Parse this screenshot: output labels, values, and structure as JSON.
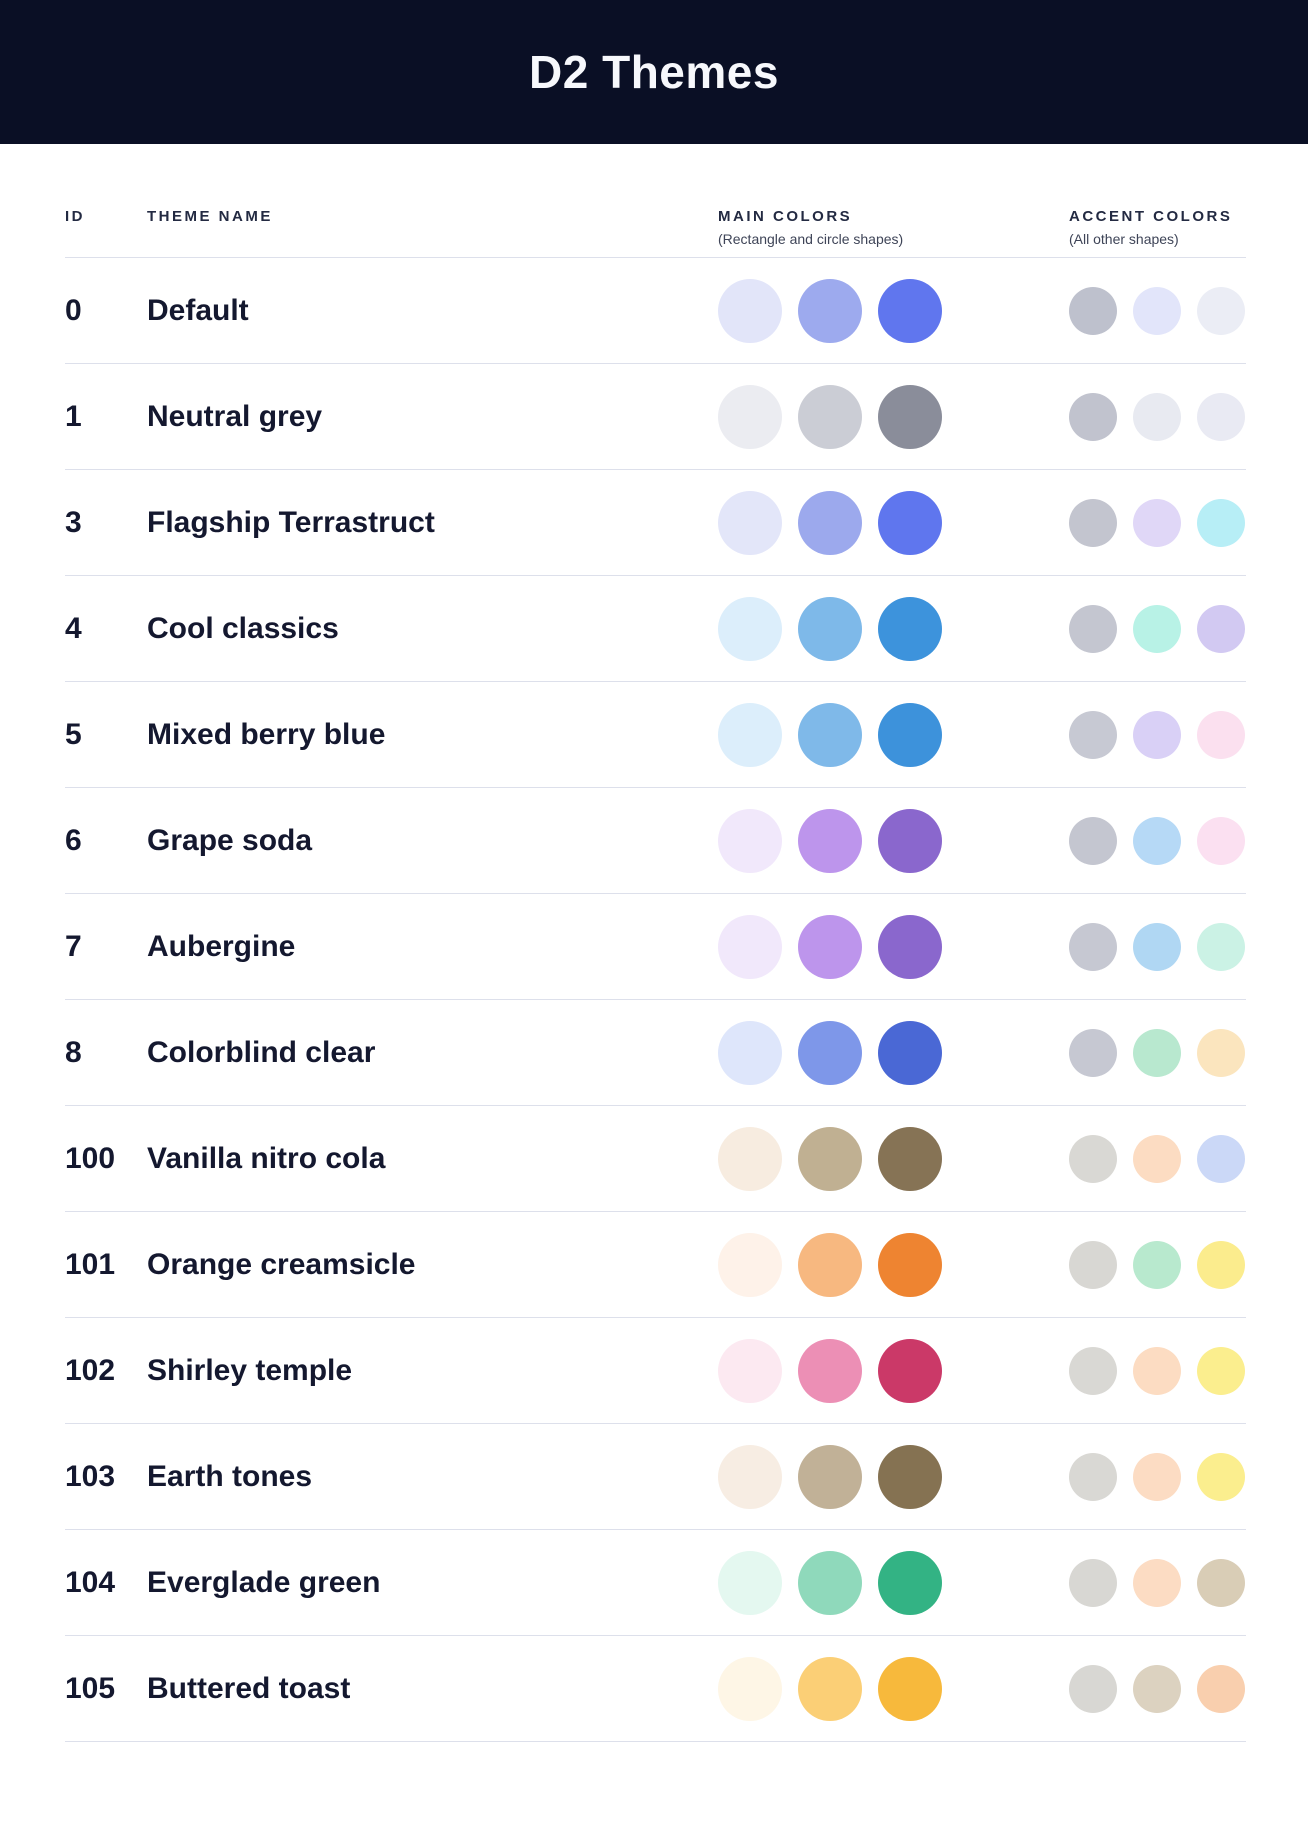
{
  "header": {
    "title": "D2 Themes"
  },
  "table": {
    "columns": {
      "id_label": "ID",
      "name_label": "THEME NAME",
      "main_label": "MAIN COLORS",
      "main_sub": "(Rectangle and circle shapes)",
      "accent_label": "ACCENT COLORS",
      "accent_sub": "(All other shapes)"
    },
    "rows": [
      {
        "id": "0",
        "name": "Default",
        "main": [
          "#E2E5F9",
          "#9DAAEE",
          "#6076EE"
        ],
        "accent": [
          "#BEC1CD",
          "#E2E5FA",
          "#EBEDF5"
        ]
      },
      {
        "id": "1",
        "name": "Neutral grey",
        "main": [
          "#EBECF1",
          "#CBCDD5",
          "#8A8D9A"
        ],
        "accent": [
          "#C1C3CE",
          "#E8EAF1",
          "#E9EAF3"
        ]
      },
      {
        "id": "3",
        "name": "Flagship Terrastruct",
        "main": [
          "#E3E6F9",
          "#9CA9ED",
          "#5F76EE"
        ],
        "accent": [
          "#C3C5CF",
          "#E0D7F7",
          "#B7EEF6"
        ]
      },
      {
        "id": "4",
        "name": "Cool classics",
        "main": [
          "#DCEEFB",
          "#7EB9E9",
          "#3D93DC"
        ],
        "accent": [
          "#C4C6D0",
          "#B8F2E6",
          "#D2C9F2"
        ]
      },
      {
        "id": "5",
        "name": "Mixed berry blue",
        "main": [
          "#DCEEFB",
          "#7FB9E9",
          "#3D92DB"
        ],
        "accent": [
          "#C7C9D3",
          "#D9D0F6",
          "#FBE0EF"
        ]
      },
      {
        "id": "6",
        "name": "Grape soda",
        "main": [
          "#F1E8FB",
          "#BD95EC",
          "#8A67CD"
        ],
        "accent": [
          "#C4C6D0",
          "#B6D9F6",
          "#FBE0F1"
        ]
      },
      {
        "id": "7",
        "name": "Aubergine",
        "main": [
          "#F1E8FB",
          "#BD95EC",
          "#8A67CD"
        ],
        "accent": [
          "#C6C8D2",
          "#B0D7F3",
          "#CBF2E5"
        ]
      },
      {
        "id": "8",
        "name": "Colorblind clear",
        "main": [
          "#DEE6FB",
          "#7E97E9",
          "#4A68D5"
        ],
        "accent": [
          "#C6C8D2",
          "#B8E8CF",
          "#FBE5BE"
        ]
      },
      {
        "id": "100",
        "name": "Vanilla nitro cola",
        "main": [
          "#F7ECE0",
          "#C0B092",
          "#867355"
        ],
        "accent": [
          "#D9D8D4",
          "#FCDCC2",
          "#CBD8F7"
        ]
      },
      {
        "id": "101",
        "name": "Orange creamsicle",
        "main": [
          "#FEF2E9",
          "#F7B880",
          "#EE8431"
        ],
        "accent": [
          "#D8D7D3",
          "#B8E9CE",
          "#FBEC8D"
        ]
      },
      {
        "id": "102",
        "name": "Shirley temple",
        "main": [
          "#FCE9F1",
          "#EC8FB5",
          "#CB3968"
        ],
        "accent": [
          "#D9D8D4",
          "#FCDCC2",
          "#FBEE8E"
        ]
      },
      {
        "id": "103",
        "name": "Earth tones",
        "main": [
          "#F7EDE3",
          "#C1B197",
          "#857252"
        ],
        "accent": [
          "#D9D8D4",
          "#FCDCC3",
          "#FBEE8E"
        ]
      },
      {
        "id": "104",
        "name": "Everglade green",
        "main": [
          "#E4F8F0",
          "#8FD9BB",
          "#33B384"
        ],
        "accent": [
          "#D8D7D3",
          "#FCDCC3",
          "#D9CDB6"
        ]
      },
      {
        "id": "105",
        "name": "Buttered toast",
        "main": [
          "#FEF6E6",
          "#FBCF76",
          "#F7B93C"
        ],
        "accent": [
          "#D8D7D3",
          "#DCD2C0",
          "#F9CFAE"
        ]
      }
    ]
  },
  "colors": {
    "banner_bg": "#0A0F25",
    "banner_text": "#F7F8FC",
    "row_text": "#14182F",
    "separator": "#DDE0EB"
  }
}
